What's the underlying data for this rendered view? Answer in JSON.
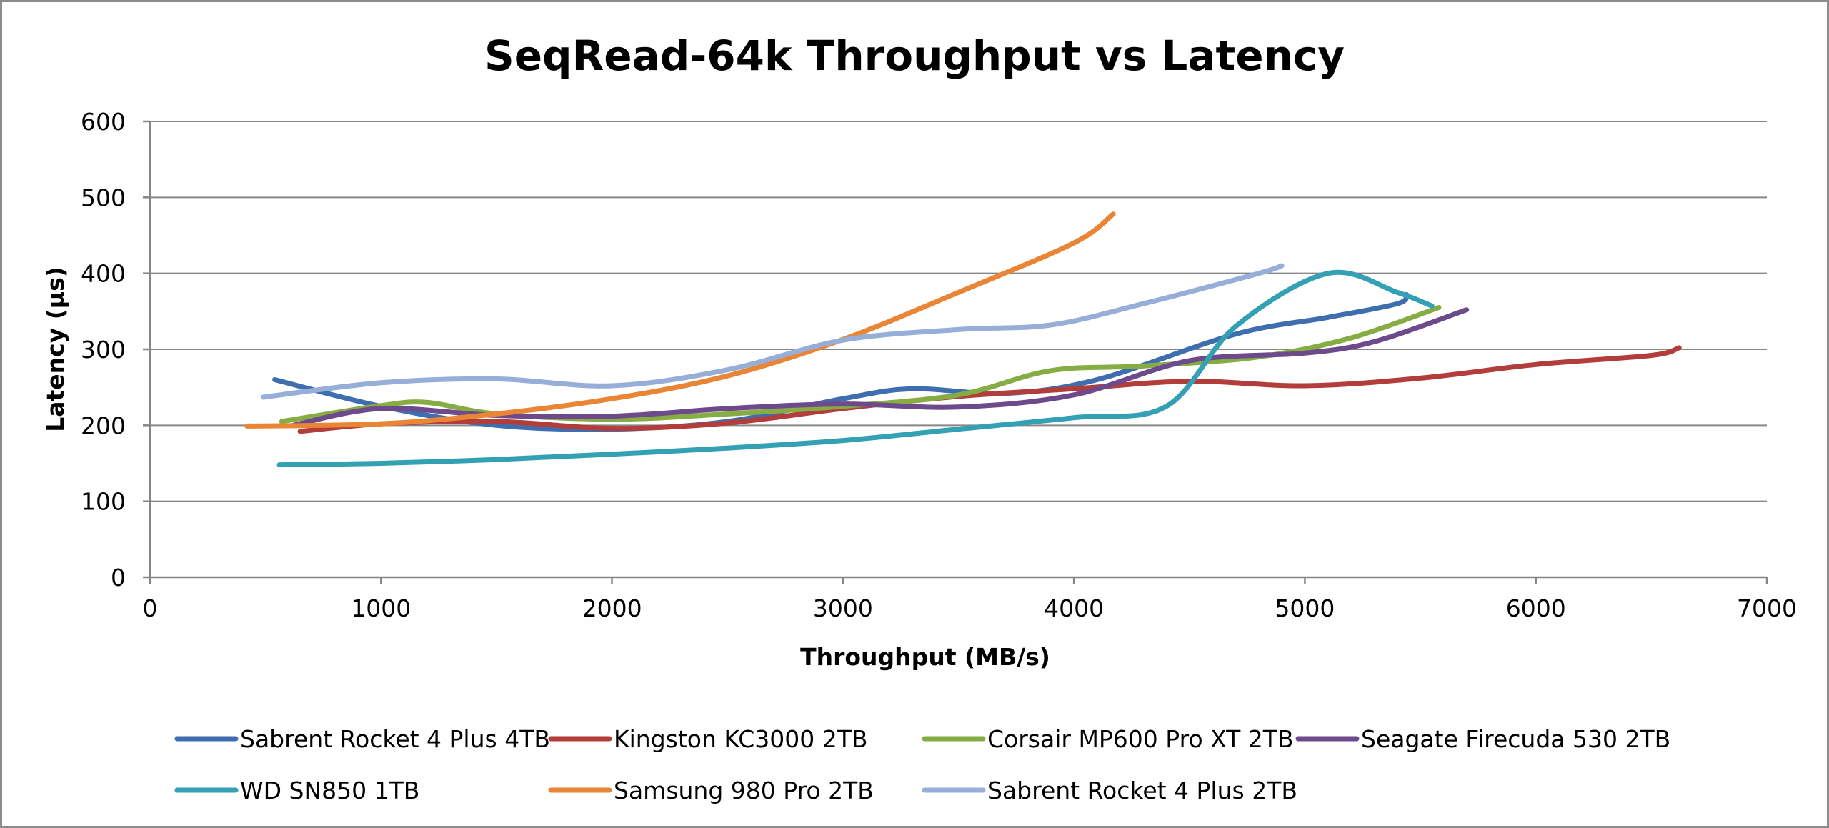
{
  "chart_data": {
    "type": "line",
    "title": "SeqRead-64k Throughput vs Latency",
    "xlabel": "Throughput (MB/s)",
    "ylabel": "Latency (µs)",
    "xlim": [
      0,
      7000
    ],
    "ylim": [
      0,
      600
    ],
    "xticks": [
      0,
      1000,
      2000,
      3000,
      4000,
      5000,
      6000,
      7000
    ],
    "yticks": [
      0,
      100,
      200,
      300,
      400,
      500,
      600
    ],
    "grid": "horizontal",
    "legend_position": "bottom",
    "series": [
      {
        "name": "Sabrent Rocket 4 Plus 4TB",
        "color": "#3f6eb0",
        "x": [
          540,
          1000,
          1500,
          2000,
          2500,
          3000,
          3300,
          3700,
          4100,
          4700,
          5100,
          5400,
          5440
        ],
        "y": [
          260,
          225,
          200,
          195,
          205,
          235,
          248,
          242,
          260,
          320,
          342,
          360,
          372
        ]
      },
      {
        "name": "Kingston KC3000 2TB",
        "color": "#b33d3a",
        "x": [
          650,
          1000,
          1500,
          2000,
          2500,
          3000,
          3500,
          4000,
          4500,
          5000,
          5500,
          6000,
          6500,
          6620
        ],
        "y": [
          192,
          202,
          205,
          196,
          203,
          222,
          238,
          248,
          258,
          252,
          262,
          280,
          292,
          302
        ]
      },
      {
        "name": "Corsair MP600 Pro XT 2TB",
        "color": "#86ad44",
        "x": [
          570,
          1000,
          1200,
          1500,
          2000,
          2500,
          3000,
          3500,
          3900,
          4300,
          4800,
          5200,
          5580
        ],
        "y": [
          205,
          226,
          230,
          215,
          208,
          215,
          225,
          240,
          272,
          278,
          290,
          315,
          355
        ]
      },
      {
        "name": "Seagate Firecuda 530 2TB",
        "color": "#6d4a8c",
        "x": [
          620,
          1000,
          1500,
          2000,
          2500,
          3000,
          3500,
          4000,
          4500,
          5000,
          5300,
          5700
        ],
        "y": [
          200,
          222,
          213,
          212,
          222,
          228,
          224,
          240,
          285,
          295,
          310,
          352
        ]
      },
      {
        "name": "WD SN850 1TB",
        "color": "#33a0b4",
        "x": [
          560,
          1000,
          1500,
          2000,
          2500,
          3000,
          3500,
          4000,
          4400,
          4700,
          5100,
          5400,
          5550
        ],
        "y": [
          148,
          150,
          155,
          162,
          170,
          180,
          195,
          210,
          225,
          330,
          400,
          375,
          357
        ]
      },
      {
        "name": "Samsung 980 Pro 2TB",
        "color": "#e98535",
        "x": [
          420,
          1000,
          1500,
          2000,
          2500,
          3000,
          3500,
          4000,
          4170
        ],
        "y": [
          199,
          202,
          215,
          235,
          265,
          313,
          375,
          440,
          478
        ]
      },
      {
        "name": "Sabrent Rocket 4 Plus 2TB",
        "color": "#97aed8",
        "x": [
          490,
          1000,
          1500,
          2000,
          2500,
          3000,
          3500,
          3900,
          4300,
          4800,
          4900
        ],
        "y": [
          237,
          256,
          261,
          252,
          273,
          312,
          326,
          332,
          360,
          400,
          410
        ]
      }
    ]
  }
}
